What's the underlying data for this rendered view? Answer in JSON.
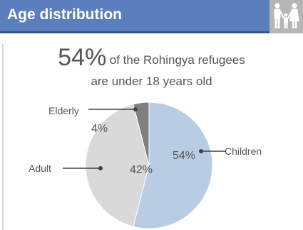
{
  "header": {
    "title": "Age distribution",
    "icon": "family-icon",
    "accent_color": "#5b7fbd",
    "icon_bg_color": "#b5b5b5"
  },
  "headline": {
    "big": "54%",
    "rest": "of the Rohingya refugees",
    "line2": "are under 18 years old"
  },
  "chart_data": {
    "type": "pie",
    "title": "",
    "slices": [
      {
        "label": "Children",
        "value": 54,
        "display": "54%",
        "color": "#b8cce4"
      },
      {
        "label": "Adult",
        "value": 42,
        "display": "42%",
        "color": "#d9d9d9"
      },
      {
        "label": "Elderly",
        "value": 4,
        "display": "4%",
        "color": "#7f7f7f"
      }
    ],
    "start_angle": "12 o'clock",
    "direction": "clockwise",
    "legend": "none (callout labels)"
  }
}
